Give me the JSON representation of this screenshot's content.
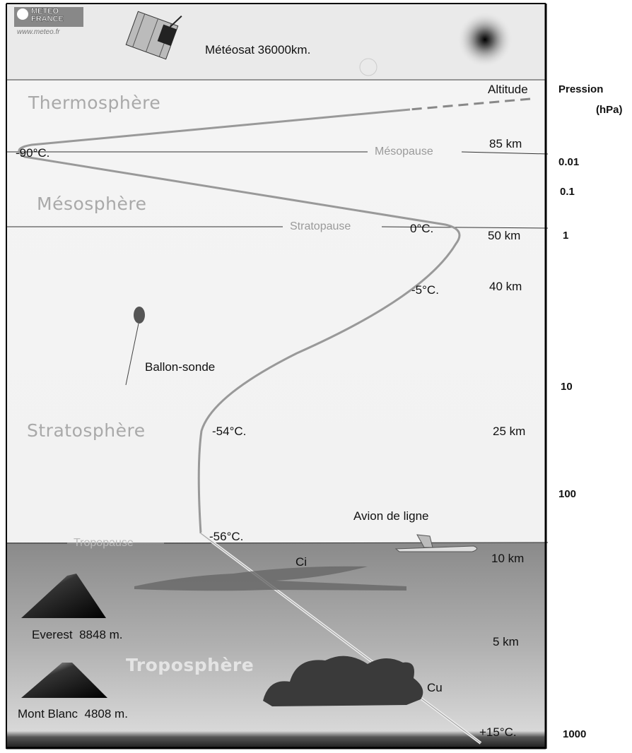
{
  "logo": {
    "line1": "METEO",
    "line2": "FRANCE",
    "url": "www.meteo.fr"
  },
  "satellite_label": "Météosat 36000km.",
  "layers": [
    "Thermosphère",
    "Mésosphère",
    "Stratosphère",
    "Troposphère"
  ],
  "boundaries": [
    "Mésopause",
    "Stratopause",
    "Tropopause"
  ],
  "altitude": {
    "title": "Altitude",
    "labels": [
      "85 km",
      "50 km",
      "40 km",
      "25 km",
      "10 km",
      "5 km"
    ]
  },
  "pressure": {
    "title": "Pression",
    "unit": "(hPa)",
    "labels": [
      "0.01",
      "0.1",
      "1",
      "10",
      "100",
      "1000"
    ]
  },
  "temperatures": [
    "-90°C.",
    "0°C.",
    "-5°C.",
    "-54°C.",
    "-56°C.",
    "+15°C."
  ],
  "objects": {
    "balloon": "Ballon-sonde",
    "plane": "Avion de ligne",
    "cirrus": "Ci",
    "cumulus": "Cu",
    "everest": "Everest  8848 m.",
    "mont_blanc": "Mont Blanc  4808 m."
  }
}
